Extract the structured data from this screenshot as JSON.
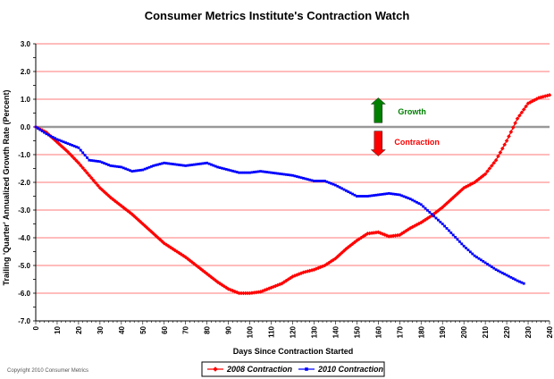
{
  "chart_data": {
    "type": "line",
    "title": "Consumer Metrics Institute's Contraction Watch",
    "xlabel": "Days Since Contraction Started",
    "ylabel": "Trailing 'Quarter' Annualized Growth Rate (Percent)",
    "xlim": [
      0,
      240
    ],
    "ylim": [
      -7.0,
      3.0
    ],
    "x_ticks": [
      "0",
      "10",
      "20",
      "30",
      "40",
      "50",
      "60",
      "70",
      "80",
      "90",
      "100",
      "110",
      "120",
      "130",
      "140",
      "150",
      "160",
      "170",
      "180",
      "190",
      "200",
      "210",
      "220",
      "230",
      "240"
    ],
    "y_ticks": [
      "3.0",
      "2.0",
      "1.0",
      "0.0",
      "-1.0",
      "-2.0",
      "-3.0",
      "-4.0",
      "-5.0",
      "-6.0",
      "-7.0"
    ],
    "grid": "horizontal",
    "legend_position": "bottom-center",
    "series": [
      {
        "name": "2008 Contraction",
        "color": "#ff0000",
        "marker": "diamond",
        "points": [
          [
            0,
            0.0
          ],
          [
            5,
            -0.2
          ],
          [
            10,
            -0.55
          ],
          [
            15,
            -0.9
          ],
          [
            20,
            -1.3
          ],
          [
            25,
            -1.75
          ],
          [
            30,
            -2.2
          ],
          [
            35,
            -2.55
          ],
          [
            40,
            -2.85
          ],
          [
            45,
            -3.15
          ],
          [
            50,
            -3.5
          ],
          [
            55,
            -3.85
          ],
          [
            60,
            -4.2
          ],
          [
            65,
            -4.45
          ],
          [
            70,
            -4.7
          ],
          [
            75,
            -5.0
          ],
          [
            80,
            -5.3
          ],
          [
            85,
            -5.6
          ],
          [
            90,
            -5.85
          ],
          [
            95,
            -6.0
          ],
          [
            100,
            -6.0
          ],
          [
            105,
            -5.95
          ],
          [
            110,
            -5.8
          ],
          [
            115,
            -5.65
          ],
          [
            120,
            -5.4
          ],
          [
            125,
            -5.25
          ],
          [
            130,
            -5.15
          ],
          [
            135,
            -5.0
          ],
          [
            140,
            -4.75
          ],
          [
            145,
            -4.4
          ],
          [
            150,
            -4.1
          ],
          [
            155,
            -3.85
          ],
          [
            160,
            -3.8
          ],
          [
            165,
            -3.95
          ],
          [
            170,
            -3.9
          ],
          [
            175,
            -3.65
          ],
          [
            180,
            -3.45
          ],
          [
            185,
            -3.2
          ],
          [
            190,
            -2.9
          ],
          [
            195,
            -2.55
          ],
          [
            200,
            -2.2
          ],
          [
            205,
            -2.0
          ],
          [
            210,
            -1.7
          ],
          [
            215,
            -1.2
          ],
          [
            220,
            -0.5
          ],
          [
            225,
            0.3
          ],
          [
            230,
            0.85
          ],
          [
            235,
            1.05
          ],
          [
            240,
            1.15
          ]
        ]
      },
      {
        "name": "2010 Contraction",
        "color": "#0000ff",
        "marker": "square",
        "points": [
          [
            0,
            0.0
          ],
          [
            5,
            -0.25
          ],
          [
            10,
            -0.45
          ],
          [
            15,
            -0.6
          ],
          [
            20,
            -0.75
          ],
          [
            25,
            -1.2
          ],
          [
            30,
            -1.25
          ],
          [
            35,
            -1.4
          ],
          [
            40,
            -1.45
          ],
          [
            45,
            -1.6
          ],
          [
            50,
            -1.55
          ],
          [
            55,
            -1.4
          ],
          [
            60,
            -1.3
          ],
          [
            65,
            -1.35
          ],
          [
            70,
            -1.4
          ],
          [
            75,
            -1.35
          ],
          [
            80,
            -1.3
          ],
          [
            85,
            -1.45
          ],
          [
            90,
            -1.55
          ],
          [
            95,
            -1.65
          ],
          [
            100,
            -1.65
          ],
          [
            105,
            -1.6
          ],
          [
            110,
            -1.65
          ],
          [
            115,
            -1.7
          ],
          [
            120,
            -1.75
          ],
          [
            125,
            -1.85
          ],
          [
            130,
            -1.95
          ],
          [
            135,
            -1.95
          ],
          [
            140,
            -2.1
          ],
          [
            145,
            -2.3
          ],
          [
            150,
            -2.5
          ],
          [
            155,
            -2.5
          ],
          [
            160,
            -2.45
          ],
          [
            165,
            -2.4
          ],
          [
            170,
            -2.45
          ],
          [
            175,
            -2.6
          ],
          [
            180,
            -2.8
          ],
          [
            185,
            -3.15
          ],
          [
            190,
            -3.5
          ],
          [
            195,
            -3.9
          ],
          [
            200,
            -4.3
          ],
          [
            205,
            -4.65
          ],
          [
            210,
            -4.9
          ],
          [
            215,
            -5.15
          ],
          [
            220,
            -5.35
          ],
          [
            225,
            -5.55
          ],
          [
            228,
            -5.65
          ]
        ]
      }
    ],
    "annotations": [
      {
        "label": "Growth",
        "color": "#008000",
        "arrow": "up",
        "arrow_color": "#008000",
        "at": [
          160,
          0.6
        ]
      },
      {
        "label": "Contraction",
        "color": "#ff0000",
        "arrow": "down",
        "arrow_color": "#ff0000",
        "at": [
          160,
          -0.6
        ]
      }
    ]
  },
  "footer": {
    "copyright": "Copyright 2010 Consumer Metrics"
  }
}
